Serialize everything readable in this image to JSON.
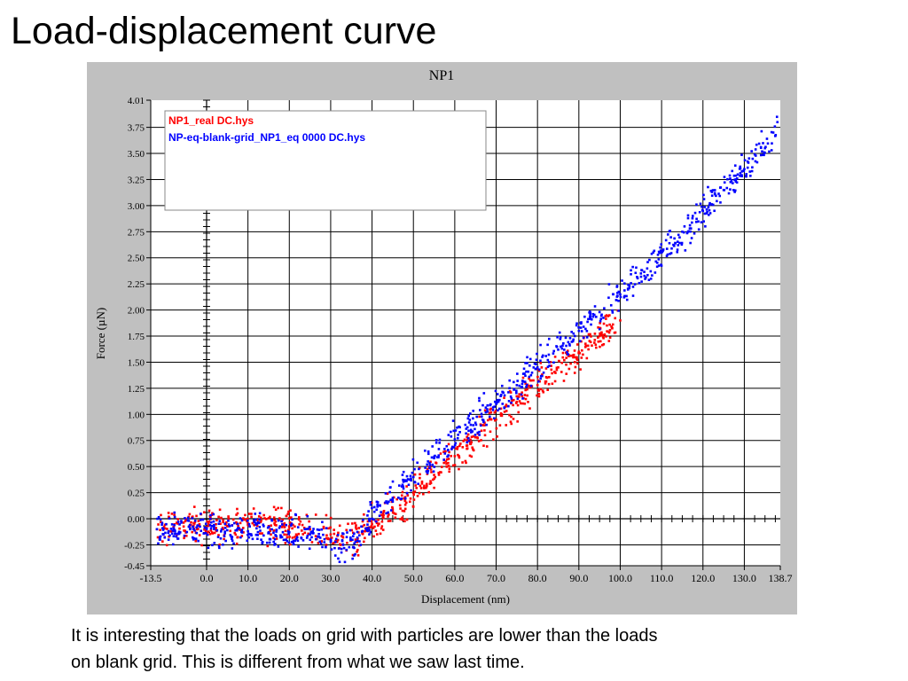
{
  "slide": {
    "title": "Load-displacement curve",
    "caption_lines": [
      "It is interesting that the loads on grid with particles are lower than the loads",
      "on blank grid. This is different from what we saw last time."
    ]
  },
  "chart_data": {
    "type": "scatter",
    "title": "NP1",
    "xlabel": "Displacement (nm)",
    "ylabel": "Force (µN)",
    "xlim": [
      -13.5,
      138.7
    ],
    "ylim": [
      -0.45,
      4.01
    ],
    "x_ticks": [
      "-13.5",
      "0.0",
      "10.0",
      "20.0",
      "30.0",
      "40.0",
      "50.0",
      "60.0",
      "70.0",
      "80.0",
      "90.0",
      "100.0",
      "110.0",
      "120.0",
      "130.0",
      "138.7"
    ],
    "y_ticks": [
      "4.01",
      "3.75",
      "3.50",
      "3.25",
      "3.00",
      "2.75",
      "2.50",
      "2.25",
      "2.00",
      "1.75",
      "1.50",
      "1.25",
      "1.00",
      "0.75",
      "0.50",
      "0.25",
      "0.00",
      "-0.25",
      "-0.45"
    ],
    "grid": true,
    "legend": "top-left",
    "colors": {
      "plot_bg": "#ffffff",
      "panel_bg": "#c0c0c0",
      "grid": "#000000"
    },
    "series": [
      {
        "name": "NP1_real DC.hys",
        "color": "#ff0000",
        "x": [
          -12,
          -8,
          -4,
          0,
          5,
          10,
          15,
          20,
          25,
          30,
          33,
          36,
          40,
          45,
          50,
          55,
          60,
          65,
          70,
          75,
          80,
          85,
          90,
          95,
          98,
          100
        ],
        "y": [
          -0.1,
          -0.08,
          -0.06,
          -0.08,
          -0.07,
          -0.06,
          -0.07,
          -0.08,
          -0.1,
          -0.15,
          -0.18,
          -0.2,
          -0.05,
          0.08,
          0.25,
          0.42,
          0.6,
          0.78,
          0.95,
          1.12,
          1.28,
          1.45,
          1.6,
          1.75,
          1.83,
          1.9
        ]
      },
      {
        "name": "NP-eq-blank-grid_NP1_eq 0000 DC.hys",
        "color": "#0000ff",
        "x": [
          -12,
          -8,
          -4,
          0,
          5,
          10,
          15,
          20,
          25,
          30,
          33,
          36,
          40,
          45,
          50,
          55,
          60,
          65,
          70,
          75,
          80,
          85,
          90,
          95,
          100,
          105,
          110,
          115,
          120,
          125,
          130,
          135,
          137,
          138
        ],
        "y": [
          -0.1,
          -0.09,
          -0.1,
          -0.1,
          -0.11,
          -0.12,
          -0.13,
          -0.13,
          -0.15,
          -0.22,
          -0.25,
          -0.22,
          0.0,
          0.2,
          0.4,
          0.58,
          0.76,
          0.92,
          1.1,
          1.28,
          1.45,
          1.62,
          1.8,
          1.98,
          2.15,
          2.35,
          2.55,
          2.75,
          2.95,
          3.15,
          3.35,
          3.55,
          3.7,
          3.8
        ]
      }
    ]
  }
}
